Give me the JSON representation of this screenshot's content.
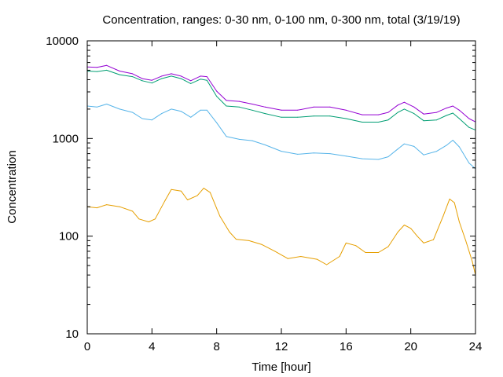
{
  "chart_data": {
    "type": "line",
    "title": "Concentration, ranges: 0-30 nm, 0-100 nm, 0-300 nm, total (3/19/19)",
    "xlabel": "Time [hour]",
    "ylabel": "Concentration",
    "xlim": [
      0,
      24
    ],
    "ylim": [
      10,
      10000
    ],
    "yscale": "log",
    "grid": false,
    "legend": "none",
    "x_ticks": [
      "0",
      "4",
      "8",
      "12",
      "16",
      "20",
      "24"
    ],
    "x_tick_values": [
      0,
      4,
      8,
      12,
      16,
      20,
      24
    ],
    "y_ticks": [
      "10",
      "100",
      "1000",
      "10000"
    ],
    "y_tick_values": [
      10,
      100,
      1000,
      10000
    ],
    "colors": {
      "range_0_30": "#e69f00",
      "range_0_100": "#56b4e9",
      "range_0_300": "#009e73",
      "total": "#9400d3"
    },
    "series": [
      {
        "key": "range_0_30",
        "x": [
          0,
          0.6,
          1.2,
          2.0,
          2.8,
          3.2,
          3.8,
          4.2,
          4.8,
          5.2,
          5.8,
          6.2,
          6.8,
          7.2,
          7.6,
          8.2,
          8.8,
          9.2,
          10.0,
          10.8,
          11.6,
          12.4,
          13.2,
          14.2,
          14.8,
          15.6,
          16.0,
          16.6,
          17.2,
          18.0,
          18.6,
          19.2,
          19.6,
          20.0,
          20.4,
          20.8,
          21.4,
          22.0,
          22.4,
          22.7,
          23.0,
          23.4,
          23.8,
          24.0
        ],
        "y": [
          200,
          195,
          210,
          200,
          180,
          150,
          140,
          150,
          230,
          300,
          290,
          235,
          260,
          310,
          280,
          160,
          110,
          93,
          90,
          82,
          70,
          59,
          62,
          58,
          51,
          62,
          85,
          80,
          68,
          68,
          78,
          110,
          130,
          120,
          100,
          85,
          92,
          160,
          240,
          220,
          140,
          90,
          55,
          40
        ]
      },
      {
        "key": "range_0_100",
        "x": [
          0,
          0.6,
          1.2,
          2.0,
          2.8,
          3.4,
          4.0,
          4.6,
          5.2,
          5.8,
          6.4,
          7.0,
          7.4,
          8.0,
          8.6,
          9.4,
          10.2,
          11.0,
          12.0,
          13.0,
          14.0,
          15.0,
          16.0,
          17.0,
          18.0,
          18.6,
          19.2,
          19.6,
          20.2,
          20.8,
          21.6,
          22.2,
          22.6,
          23.0,
          23.6,
          24.0
        ],
        "y": [
          2150,
          2100,
          2250,
          2000,
          1850,
          1600,
          1550,
          1800,
          2000,
          1900,
          1650,
          1950,
          1950,
          1450,
          1050,
          980,
          950,
          860,
          740,
          690,
          710,
          700,
          660,
          620,
          610,
          650,
          780,
          880,
          830,
          680,
          740,
          850,
          960,
          820,
          560,
          490
        ]
      },
      {
        "key": "range_0_300",
        "x": [
          0,
          0.6,
          1.2,
          2.0,
          2.8,
          3.4,
          4.0,
          4.6,
          5.2,
          5.8,
          6.4,
          7.0,
          7.4,
          8.0,
          8.6,
          9.4,
          10.2,
          11.0,
          12.0,
          13.0,
          14.0,
          15.0,
          16.0,
          17.0,
          18.0,
          18.6,
          19.2,
          19.6,
          20.2,
          20.8,
          21.6,
          22.2,
          22.6,
          23.0,
          23.6,
          24.0
        ],
        "y": [
          4900,
          4850,
          5000,
          4500,
          4300,
          3900,
          3700,
          4100,
          4350,
          4100,
          3650,
          4050,
          3950,
          2700,
          2150,
          2100,
          1950,
          1800,
          1650,
          1650,
          1700,
          1700,
          1600,
          1470,
          1470,
          1550,
          1850,
          2000,
          1800,
          1520,
          1550,
          1720,
          1820,
          1600,
          1300,
          1220
        ]
      },
      {
        "key": "total",
        "x": [
          0,
          0.6,
          1.2,
          2.0,
          2.8,
          3.4,
          4.0,
          4.6,
          5.2,
          5.8,
          6.4,
          7.0,
          7.4,
          8.0,
          8.6,
          9.4,
          10.2,
          11.0,
          12.0,
          13.0,
          14.0,
          15.0,
          16.0,
          17.0,
          18.0,
          18.6,
          19.2,
          19.6,
          20.2,
          20.8,
          21.6,
          22.2,
          22.6,
          23.0,
          23.6,
          24.0
        ],
        "y": [
          5400,
          5350,
          5600,
          4900,
          4600,
          4100,
          3950,
          4350,
          4600,
          4350,
          3900,
          4350,
          4300,
          3050,
          2450,
          2400,
          2250,
          2100,
          1950,
          1950,
          2100,
          2100,
          1950,
          1750,
          1750,
          1850,
          2200,
          2350,
          2100,
          1780,
          1850,
          2050,
          2150,
          1950,
          1600,
          1480
        ]
      }
    ]
  }
}
